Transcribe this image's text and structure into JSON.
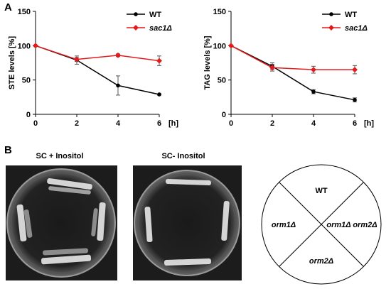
{
  "panels": {
    "a": "A",
    "b": "B"
  },
  "chart_data": [
    {
      "type": "line",
      "title": "",
      "xlabel": "[h]",
      "ylabel": "STE levels [%]",
      "x": [
        0,
        2,
        4,
        6
      ],
      "xlim": [
        0,
        6
      ],
      "ylim": [
        0,
        150
      ],
      "yticks": [
        0,
        50,
        100,
        150
      ],
      "xticks": [
        0,
        2,
        4,
        6
      ],
      "grid": false,
      "legend_position": "top-right",
      "series": [
        {
          "name": "WT",
          "color": "#000000",
          "values": [
            100,
            79,
            42,
            29
          ],
          "errors": [
            0,
            6,
            14,
            1
          ]
        },
        {
          "name": "sac1Δ",
          "color": "#e31a1c",
          "values": [
            100,
            80,
            86,
            78
          ],
          "errors": [
            0,
            3,
            2,
            7
          ]
        }
      ]
    },
    {
      "type": "line",
      "title": "",
      "xlabel": "[h]",
      "ylabel": "TAG levels [%]",
      "x": [
        0,
        2,
        4,
        6
      ],
      "xlim": [
        0,
        6
      ],
      "ylim": [
        0,
        150
      ],
      "yticks": [
        0,
        50,
        100,
        150
      ],
      "xticks": [
        0,
        2,
        4,
        6
      ],
      "grid": false,
      "legend_position": "top-right",
      "series": [
        {
          "name": "WT",
          "color": "#000000",
          "values": [
            100,
            70,
            33,
            21
          ],
          "errors": [
            0,
            5,
            3,
            3
          ]
        },
        {
          "name": "sac1Δ",
          "color": "#e31a1c",
          "values": [
            100,
            68,
            65,
            65
          ],
          "errors": [
            0,
            5,
            5,
            6
          ]
        }
      ]
    }
  ],
  "plates": {
    "left_label": "SC + Inositol",
    "right_label": "SC- Inositol"
  },
  "diagram": {
    "top": "WT",
    "left": "orm1Δ",
    "right": "orm1Δ orm2Δ",
    "bottom": "orm2Δ"
  }
}
